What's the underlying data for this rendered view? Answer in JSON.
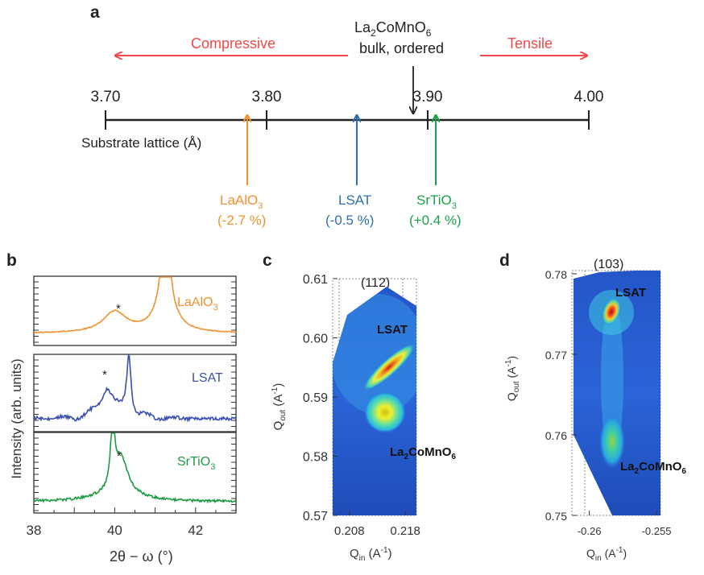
{
  "panel_a": {
    "label": "a",
    "bulk_label": {
      "formula": [
        "La",
        "2",
        "CoMnO",
        "6"
      ],
      "line2": "bulk, ordered"
    },
    "compressive": "Compressive",
    "tensile": "Tensile",
    "axis_label": "Substrate lattice (Å)",
    "ticks": [
      "3.70",
      "3.80",
      "3.90",
      "4.00"
    ],
    "tick_values": [
      3.7,
      3.8,
      3.9,
      4.0
    ],
    "bulk_value": 3.885,
    "substrates": [
      {
        "name": [
          "LaAlO",
          "3"
        ],
        "strain": "(-2.7 %)",
        "value": 3.79,
        "color": "#f0922e"
      },
      {
        "name": [
          "LSAT",
          ""
        ],
        "strain": "(-0.5 %)",
        "value": 3.868,
        "color": "#2f6fb0"
      },
      {
        "name": [
          "SrTiO",
          "3"
        ],
        "strain": "(+0.4 %)",
        "value": 3.905,
        "color": "#1aa24a"
      }
    ],
    "colors": {
      "red": "#ef4a4a",
      "axis": "#222222"
    }
  },
  "panel_b": {
    "label": "b",
    "ylabel": "Intensity (arb. units)",
    "xlabel": "2θ − ω (°)",
    "xticks": [
      "38",
      "40",
      "42"
    ],
    "curve_labels": [
      {
        "text": [
          "LaAlO",
          "3"
        ],
        "color": "#f0922e"
      },
      {
        "text": [
          "LSAT",
          ""
        ],
        "color": "#3a4fb0"
      },
      {
        "text": [
          "SrTiO",
          "3"
        ],
        "color": "#1f9a44"
      }
    ],
    "star": "*"
  },
  "panel_c": {
    "label": "c",
    "hkl": "(112)",
    "yticks": [
      "0.61",
      "0.60",
      "0.59",
      "0.58",
      "0.57"
    ],
    "xticks": [
      "0.208",
      "0.218"
    ],
    "ylabel": [
      "Q",
      "out",
      " (A",
      "-1",
      ")"
    ],
    "xlabel": [
      "Q",
      "in",
      " (A",
      "-1",
      ")"
    ],
    "peak_labels": {
      "substrate": "LSAT",
      "film": [
        "La",
        "2",
        "CoMnO",
        "6"
      ]
    }
  },
  "panel_d": {
    "label": "d",
    "hkl": "(103)",
    "yticks": [
      "0.78",
      "0.77",
      "0.76",
      "0.75"
    ],
    "xticks": [
      "-0.26",
      "-0.255"
    ],
    "ylabel": [
      "Q",
      "out",
      " (A",
      "-1",
      ")"
    ],
    "xlabel": [
      "Q",
      "in",
      " (A",
      "-1",
      ")"
    ],
    "peak_labels": {
      "substrate": "LSAT",
      "film": [
        "La",
        "2",
        "CoMnO",
        "6"
      ]
    }
  },
  "chart_data": [
    {
      "type": "line",
      "title": "",
      "xlabel": "2θ − ω (°)",
      "ylabel": "Intensity (arb. units)",
      "xlim": [
        38,
        43
      ],
      "series": [
        {
          "name": "LaAlO3",
          "peaks": [
            {
              "x": 40.0,
              "marked": true
            },
            {
              "x": 41.25,
              "marked": false
            }
          ]
        },
        {
          "name": "LSAT",
          "peaks": [
            {
              "x": 39.8,
              "marked": true
            },
            {
              "x": 40.35,
              "marked": false
            }
          ]
        },
        {
          "name": "SrTiO3",
          "peaks": [
            {
              "x": 39.95,
              "marked": false
            },
            {
              "x": 40.15,
              "marked": true
            }
          ]
        }
      ]
    },
    {
      "type": "heatmap",
      "title": "(112)",
      "xlim": [
        0.205,
        0.22
      ],
      "ylim": [
        0.57,
        0.61
      ],
      "peaks": [
        {
          "name": "LSAT",
          "x": 0.2125,
          "y": 0.5955
        },
        {
          "name": "La2CoMnO6",
          "x": 0.2125,
          "y": 0.588
        }
      ]
    },
    {
      "type": "heatmap",
      "title": "(103)",
      "xlim": [
        -0.2613,
        -0.2547
      ],
      "ylim": [
        0.75,
        0.78
      ],
      "peaks": [
        {
          "name": "LSAT",
          "x": -0.2583,
          "y": 0.7755
        },
        {
          "name": "La2CoMnO6",
          "x": -0.2583,
          "y": 0.7595
        }
      ]
    }
  ]
}
